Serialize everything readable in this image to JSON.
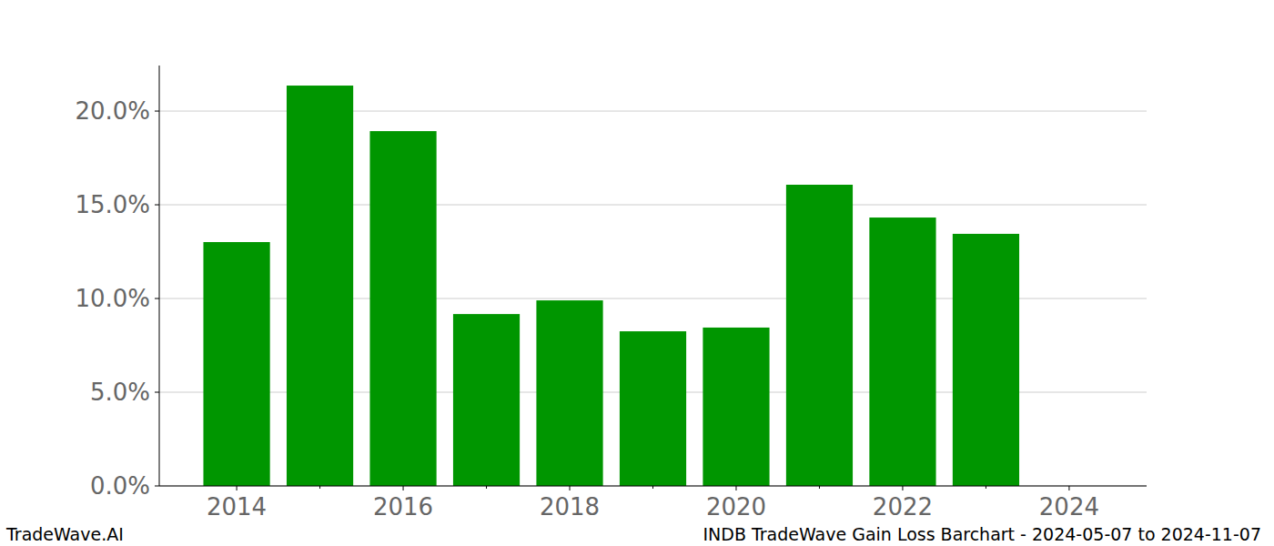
{
  "chart_data": {
    "type": "bar",
    "title": "INDB TradeWave Gain Loss Barchart - 2024-05-07 to 2024-11-07",
    "source": "TradeWave.AI",
    "x": [
      2014,
      2015,
      2016,
      2017,
      2018,
      2019,
      2020,
      2021,
      2022,
      2023
    ],
    "values": [
      13.01,
      21.36,
      18.93,
      9.17,
      9.9,
      8.25,
      8.45,
      16.07,
      14.32,
      13.45
    ],
    "color": "#009600",
    "xlim": [
      2013.07,
      2024.93
    ],
    "xticks": [
      2014,
      2016,
      2018,
      2020,
      2022,
      2024
    ],
    "ylim": [
      0,
      22.43
    ],
    "yticks": [
      {
        "value": 0,
        "label": "0.0%"
      },
      {
        "value": 5,
        "label": "5.0%"
      },
      {
        "value": 10,
        "label": "10.0%"
      },
      {
        "value": 15,
        "label": "15.0%"
      },
      {
        "value": 20,
        "label": "20.0%"
      }
    ],
    "grid": true
  }
}
